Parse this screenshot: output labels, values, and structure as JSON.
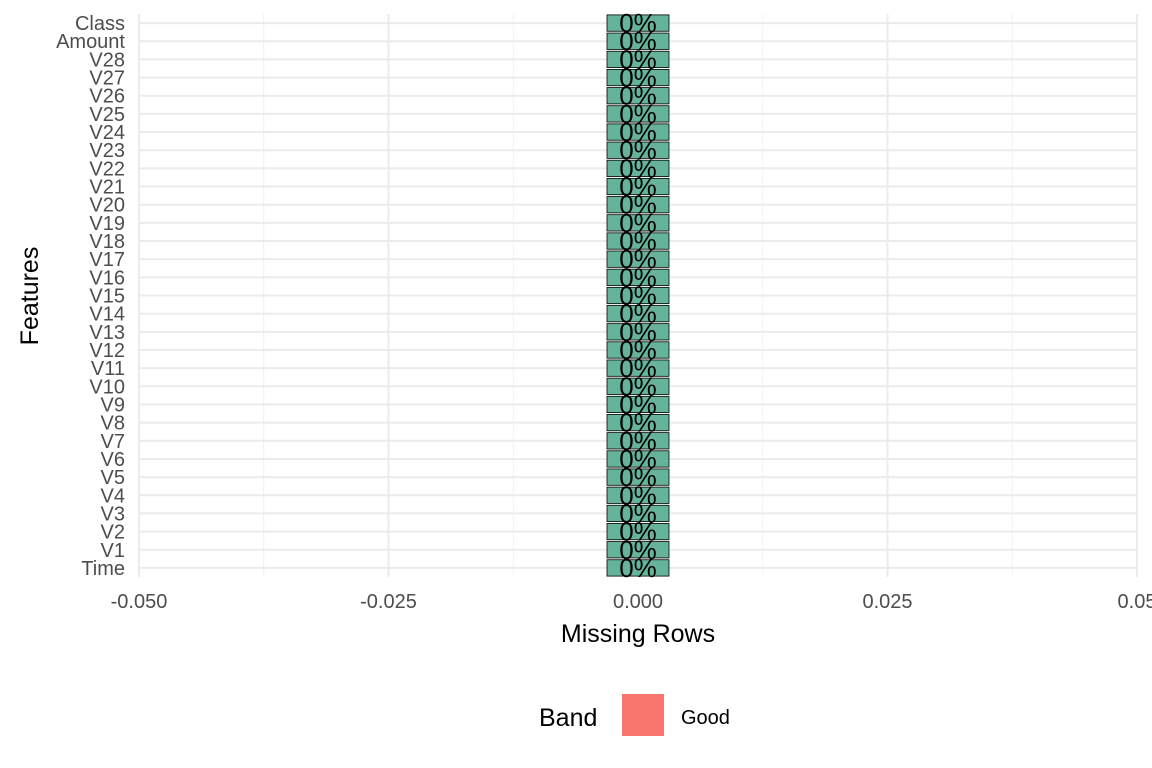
{
  "chart_data": {
    "type": "bar",
    "orientation": "horizontal",
    "title": "",
    "xlabel": "Missing Rows",
    "ylabel": "Features",
    "xlim": [
      -0.05,
      0.05
    ],
    "x_ticks": [
      -0.05,
      -0.025,
      0.0,
      0.025,
      0.05
    ],
    "x_tick_labels": [
      "-0.050",
      "-0.025",
      "0.000",
      "0.025",
      "0.05"
    ],
    "categories": [
      "Time",
      "V1",
      "V2",
      "V3",
      "V4",
      "V5",
      "V6",
      "V7",
      "V8",
      "V9",
      "V10",
      "V11",
      "V12",
      "V13",
      "V14",
      "V15",
      "V16",
      "V17",
      "V18",
      "V19",
      "V20",
      "V21",
      "V22",
      "V23",
      "V24",
      "V25",
      "V26",
      "V27",
      "V28",
      "Amount",
      "Class"
    ],
    "values": [
      0,
      0,
      0,
      0,
      0,
      0,
      0,
      0,
      0,
      0,
      0,
      0,
      0,
      0,
      0,
      0,
      0,
      0,
      0,
      0,
      0,
      0,
      0,
      0,
      0,
      0,
      0,
      0,
      0,
      0,
      0
    ],
    "bar_labels": [
      "0%",
      "0%",
      "0%",
      "0%",
      "0%",
      "0%",
      "0%",
      "0%",
      "0%",
      "0%",
      "0%",
      "0%",
      "0%",
      "0%",
      "0%",
      "0%",
      "0%",
      "0%",
      "0%",
      "0%",
      "0%",
      "0%",
      "0%",
      "0%",
      "0%",
      "0%",
      "0%",
      "0%",
      "0%",
      "0%",
      "0%"
    ],
    "bar_color": "#66b39c",
    "grid": true,
    "legend": {
      "title": "Band",
      "position": "bottom",
      "entries": [
        {
          "label": "Good",
          "color": "#f8766d"
        }
      ]
    }
  }
}
